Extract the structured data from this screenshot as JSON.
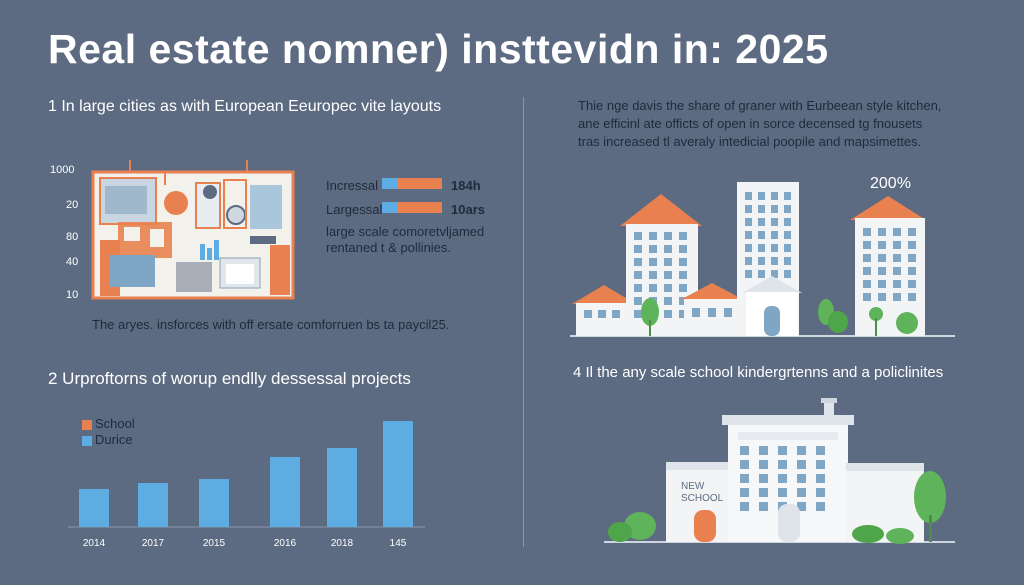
{
  "title": "Real estate nomner) insttevidn in: 2025",
  "section1": {
    "heading": "1  In large cities as with European Eeuropec vite layouts",
    "y_labels": [
      "1000",
      "20",
      "80",
      "40",
      "10"
    ],
    "bars": [
      {
        "label": "Incressal",
        "value_text": "184h"
      },
      {
        "label": "Largessal",
        "value_text": "10ars"
      }
    ],
    "note_lines": [
      "large scale comoretvljamed",
      "rentaned t & pollinies."
    ],
    "caption": "The aryes. insforces with off ersate comforruen bs ta paycil25."
  },
  "section2": {
    "heading": "2 Urproftorns of worup endlly dessessal projects",
    "legend": [
      {
        "label": "School",
        "color": "#e8814f"
      },
      {
        "label": "Durice",
        "color": "#5dade2"
      }
    ]
  },
  "section3": {
    "text_lines": [
      "Thie nge davis the share of graner with Eurbeean style kitchen,",
      "ane efficinl ate officts of open in sorce decensed tg fnousets",
      "tras increased tl averaly intedicial poopile and mapsimettes."
    ],
    "percent": "200%"
  },
  "section4": {
    "heading": "4  Il the any scale school kindergrtenns and a policlinites",
    "sign_lines": [
      "NEW",
      "SCHOOL"
    ]
  },
  "colors": {
    "orange": "#e8814f",
    "blue": "#5dade2",
    "background": "#5d6b82"
  },
  "chart_data": {
    "type": "bar",
    "categories": [
      "2014",
      "2017",
      "2015",
      "2016",
      "2018",
      "145"
    ],
    "series": [
      {
        "values": [
          38,
          44,
          48,
          70,
          79,
          106
        ]
      }
    ]
  }
}
